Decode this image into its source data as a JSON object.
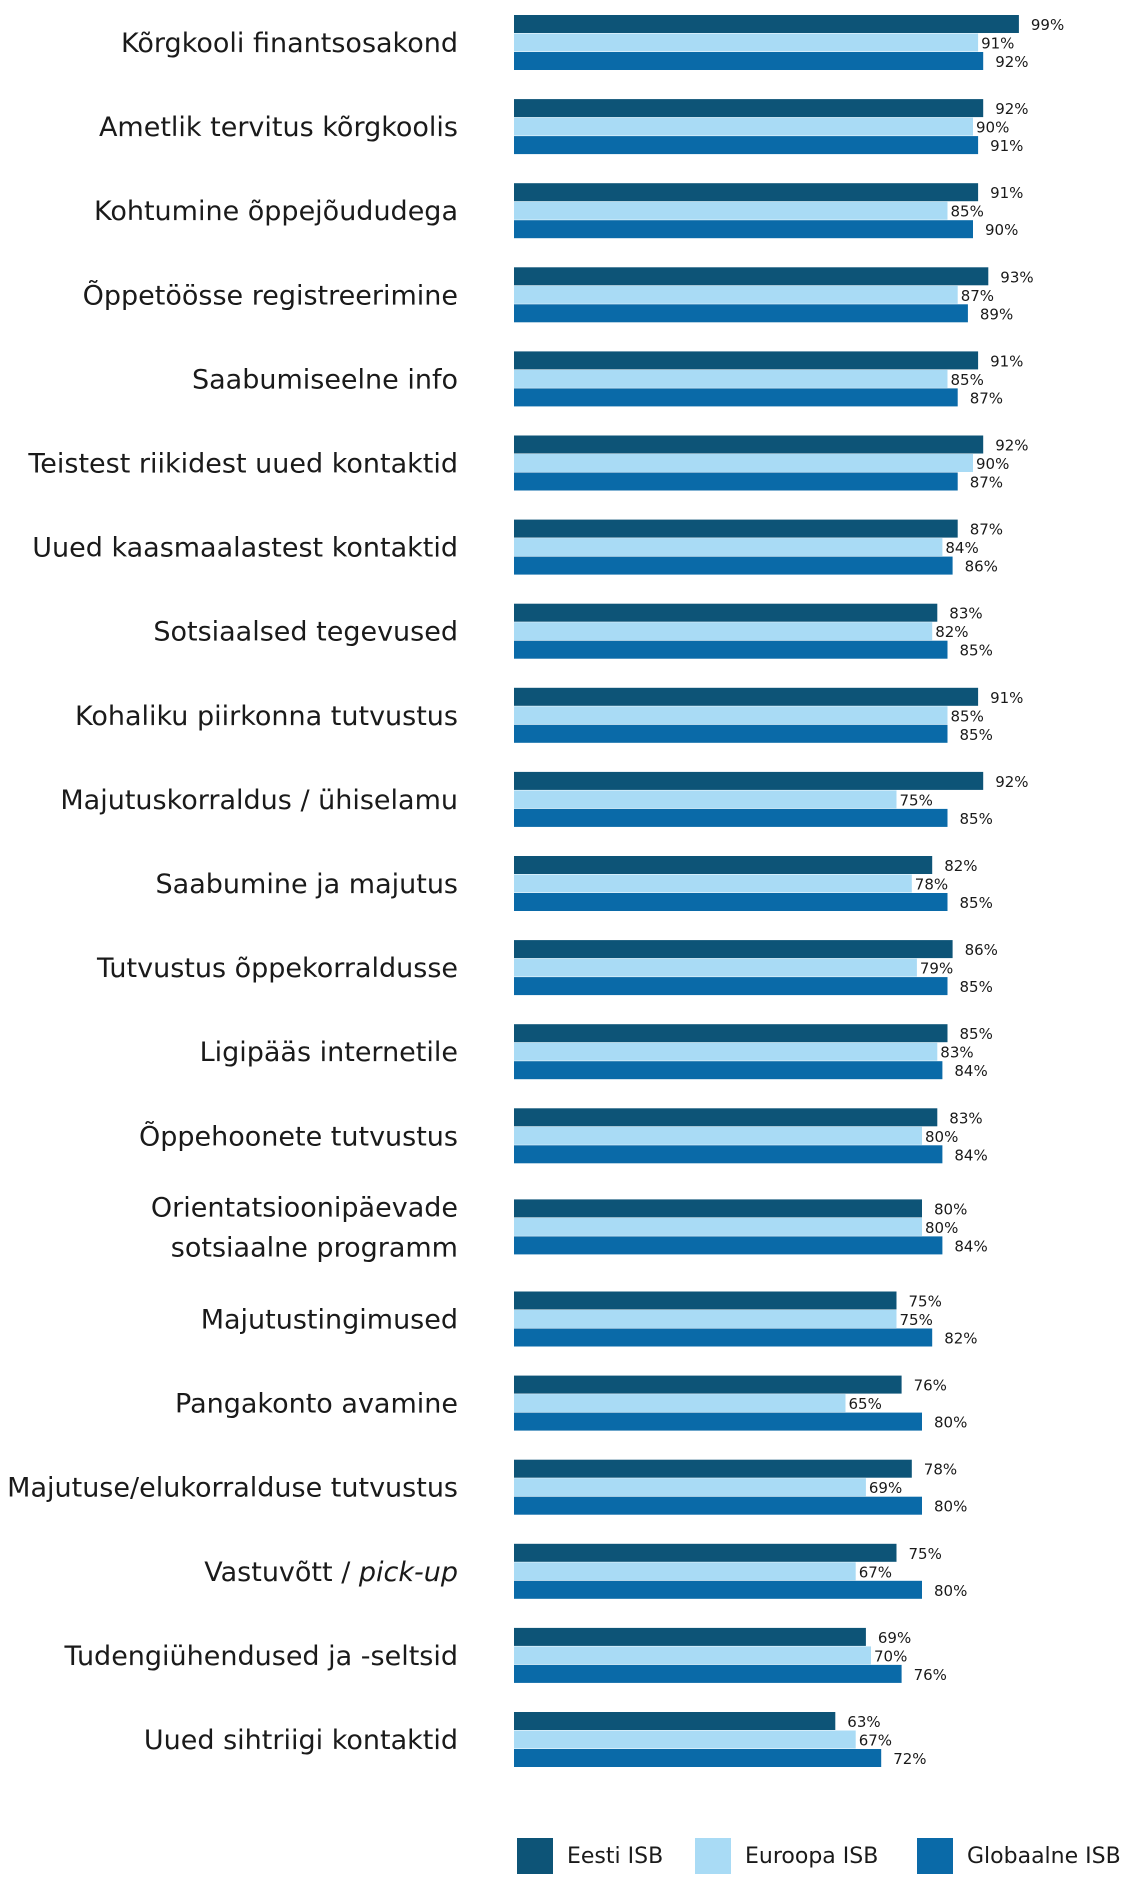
{
  "chart_data": {
    "type": "bar",
    "orientation": "horizontal",
    "categories": [
      "Kõrgkooli finantsosakond",
      "Ametlik tervitus kõrgkoolis",
      "Kohtumine õppejõududega",
      "Õppetöösse registreerimine",
      "Saabumiseelne info",
      "Teistest riikidest uued kontaktid",
      "Uued kaasmaalastest kontaktid",
      "Sotsiaalsed tegevused",
      "Kohaliku piirkonna tutvustus",
      "Majutuskorraldus / ühiselamu",
      "Saabumine ja majutus",
      "Tutvustus õppekorraldusse",
      "Ligipääs internetile",
      "Õppehoonete tutvustus",
      "Orientatsioonipäevade sotsiaalne programm",
      "Majutustingimused",
      "Pangakonto avamine",
      "Majutuse/elukorralduse tutvustus",
      "Vastuvõtt / pick-up",
      "Tudengiühendused ja -seltsid",
      "Uued sihtriigi kontaktid"
    ],
    "category_lines": [
      [
        "Kõrgkooli finantsosakond"
      ],
      [
        "Ametlik tervitus kõrgkoolis"
      ],
      [
        "Kohtumine õppejõududega"
      ],
      [
        "Õppetöösse registreerimine"
      ],
      [
        "Saabumiseelne info"
      ],
      [
        "Teistest riikidest uued kontaktid"
      ],
      [
        "Uued kaasmaalastest kontaktid"
      ],
      [
        "Sotsiaalsed tegevused"
      ],
      [
        "Kohaliku piirkonna tutvustus"
      ],
      [
        "Majutuskorraldus / ühiselamu"
      ],
      [
        "Saabumine ja majutus"
      ],
      [
        "Tutvustus õppekorraldusse"
      ],
      [
        "Ligipääs internetile"
      ],
      [
        "Õppehoonete tutvustus"
      ],
      [
        "Orientatsioonipäevade",
        "sotsiaalne programm"
      ],
      [
        "Majutustingimused"
      ],
      [
        "Pangakonto avamine"
      ],
      [
        "Majutuse/elukorralduse tutvustus"
      ],
      [
        "Vastuvõtt / pick-up"
      ],
      [
        "Tudengiühendused ja -seltsid"
      ],
      [
        "Uued sihtriigi kontaktid"
      ]
    ],
    "series": [
      {
        "name": "Eesti ISB",
        "color": "#0d5477",
        "values": [
          99,
          92,
          91,
          93,
          91,
          92,
          87,
          83,
          91,
          92,
          82,
          86,
          85,
          83,
          80,
          75,
          76,
          78,
          75,
          69,
          63
        ]
      },
      {
        "name": "Euroopa ISB",
        "color": "#a9dbf5",
        "values": [
          91,
          90,
          85,
          87,
          85,
          90,
          84,
          82,
          85,
          75,
          78,
          79,
          83,
          80,
          80,
          75,
          65,
          69,
          67,
          70,
          67
        ]
      },
      {
        "name": "Globaalne ISB",
        "color": "#0a6aa8",
        "values": [
          92,
          91,
          90,
          89,
          87,
          87,
          86,
          85,
          85,
          85,
          85,
          85,
          84,
          84,
          84,
          82,
          80,
          80,
          80,
          76,
          72
        ]
      }
    ],
    "value_suffix": "%",
    "xlim": [
      0,
      100
    ],
    "legend_position": "bottom"
  }
}
